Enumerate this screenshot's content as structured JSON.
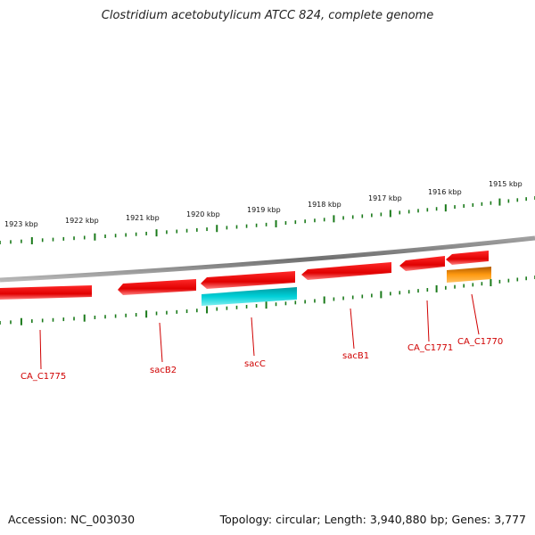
{
  "title": "Clostridium acetobutylicum ATCC 824, complete genome",
  "accession": "Accession: NC_003030",
  "topology": "Topology: circular; Length: 3,940,880 bp; Genes: 3,777",
  "scale_labels": [
    "1923 kbp",
    "1922 kbp",
    "1921 kbp",
    "1920 kbp",
    "1919 kbp",
    "1918 kbp",
    "1917 kbp",
    "1916 kbp",
    "1915 kbp"
  ],
  "genes": [
    {
      "label": "CA_C1775",
      "strand": "-",
      "color": "#e80000"
    },
    {
      "label": "sacB2",
      "strand": "-",
      "color": "#e80000"
    },
    {
      "label": "sacC",
      "strand": "-",
      "color": "#e80000"
    },
    {
      "label": "sacB1",
      "strand": "-",
      "color": "#e80000"
    },
    {
      "label": "CA_C1771",
      "strand": "-",
      "color": "#e80000"
    },
    {
      "label": "CA_C1770",
      "strand": "-",
      "color": "#e80000"
    }
  ],
  "features": [
    {
      "gene": "sacC",
      "color": "#00c0c8"
    },
    {
      "gene": "CA_C1770",
      "color": "#ff8c00"
    }
  ],
  "colors": {
    "backbone": "#808080",
    "ticks": "#1a7a1a",
    "gene_label": "#d00000"
  }
}
